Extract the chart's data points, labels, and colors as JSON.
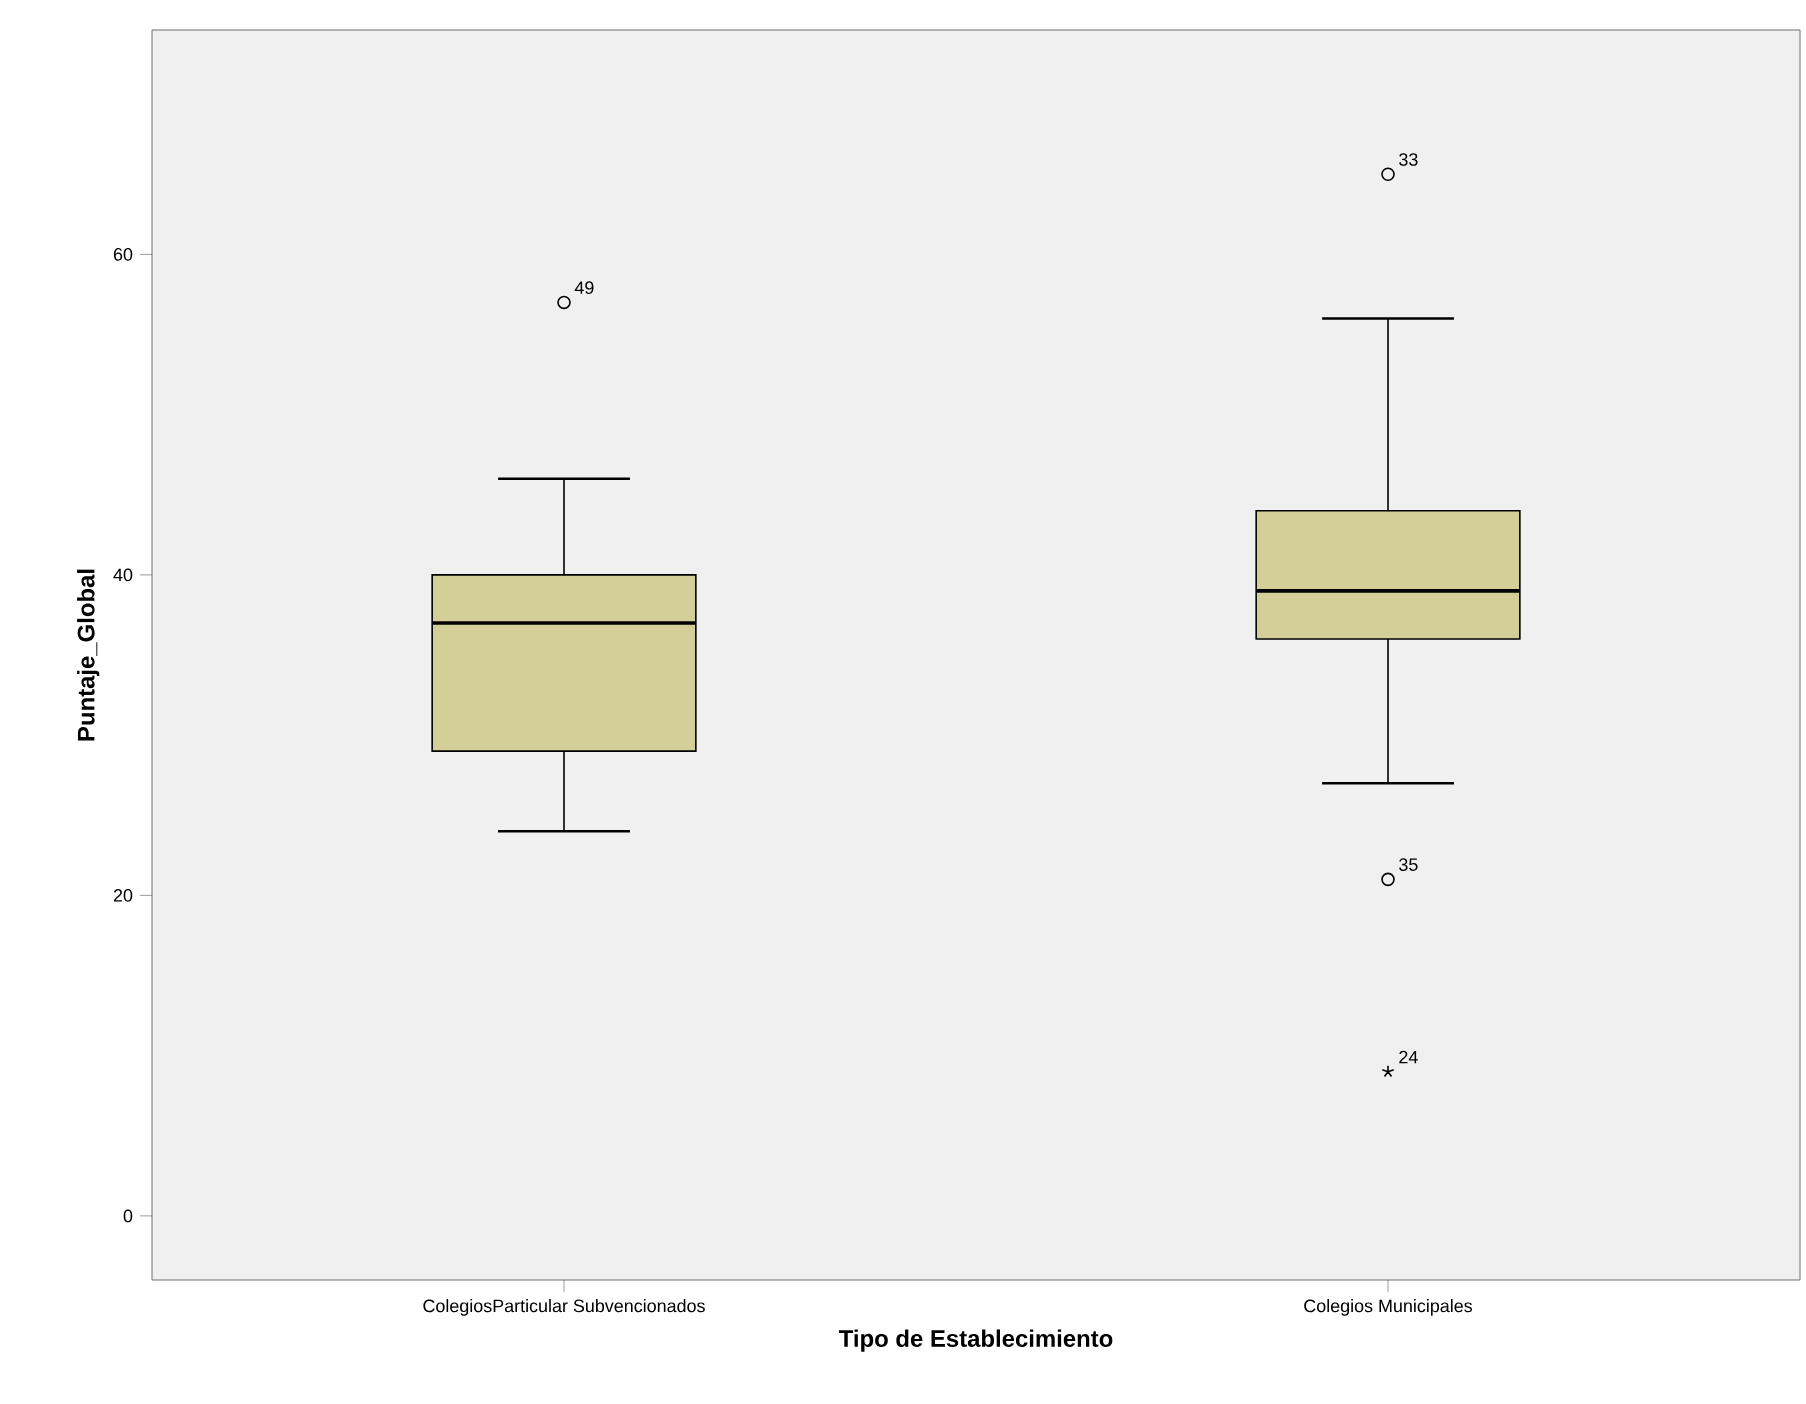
{
  "chart_data": {
    "type": "box",
    "xlabel": "Tipo de Establecimiento",
    "ylabel": "Puntaje_Global",
    "categories": [
      "ColegiosParticular Subvencionados",
      "Colegios Municipales"
    ],
    "color": "#d4cf98",
    "boxes": [
      {
        "low": 24,
        "q1": 29,
        "median": 37,
        "q3": 40,
        "high": 46,
        "outliers": [
          57
        ]
      },
      {
        "low": 27,
        "q1": 36,
        "median": 39,
        "q3": 44,
        "high": 56,
        "outliers": [
          65,
          21,
          9
        ]
      }
    ],
    "ylim": [
      -4,
      74
    ],
    "yticks": [
      0,
      20,
      40,
      60
    ],
    "annotations": [
      "49",
      "33",
      "35",
      "24"
    ]
  }
}
